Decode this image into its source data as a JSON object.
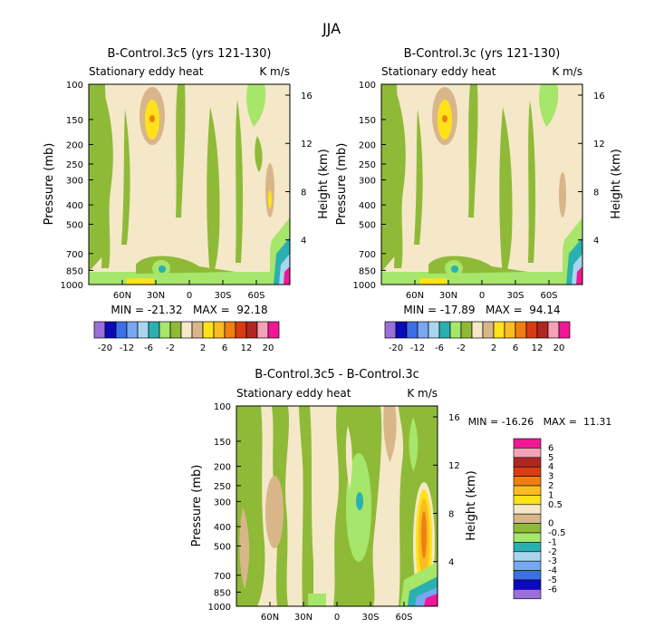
{
  "figure_title": "JJA",
  "colors": {
    "pos_legend": [
      "#9b6fd9",
      "#0a0ab8",
      "#3c6fe8",
      "#78a8f0",
      "#a9d6ee",
      "#2ab0b0",
      "#a6e66a",
      "#8fba38",
      "#f5e8c8",
      "#d8b68a",
      "#ffe21a",
      "#f9bd22",
      "#f07f12",
      "#d93c12",
      "#b02722",
      "#f4a2b8",
      "#f01896"
    ],
    "diff_legend": [
      "#f01896",
      "#f4a2b8",
      "#b02722",
      "#d93c12",
      "#f07f12",
      "#f9bd22",
      "#ffe21a",
      "#f5e8c8",
      "#d8b68a",
      "#8fba38",
      "#a6e66a",
      "#2ab0b0",
      "#a9d6ee",
      "#78a8f0",
      "#3c6fe8",
      "#0a0ab8",
      "#9b6fd9"
    ]
  },
  "chart_data": [
    {
      "type": "heatmap",
      "title": "B-Control.3c5 (yrs 121-130)",
      "subtitle_left": "Stationary eddy heat",
      "subtitle_right": "K m/s",
      "ylabel": "Pressure (mb)",
      "ylabel_right": "Height (km)",
      "x_ticks": [
        "60N",
        "30N",
        "0",
        "30S",
        "60S"
      ],
      "x_tick_values": [
        60,
        30,
        0,
        -30,
        -60
      ],
      "xlim": [
        90,
        -90
      ],
      "y_ticks": [
        100,
        150,
        200,
        250,
        300,
        400,
        500,
        700,
        850,
        1000
      ],
      "ylim": [
        100,
        1000
      ],
      "height_ticks": [
        16,
        12,
        8,
        4
      ],
      "stats": "MIN = -21.32   MAX =  92.18",
      "legend_labels": [
        "-20",
        "-12",
        "-6",
        "-2",
        "2",
        "6",
        "12",
        "20"
      ]
    },
    {
      "type": "heatmap",
      "title": "B-Control.3c (yrs 121-130)",
      "subtitle_left": "Stationary eddy heat",
      "subtitle_right": "K m/s",
      "ylabel": "Pressure (mb)",
      "ylabel_right": "Height (km)",
      "x_ticks": [
        "60N",
        "30N",
        "0",
        "30S",
        "60S"
      ],
      "x_tick_values": [
        60,
        30,
        0,
        -30,
        -60
      ],
      "xlim": [
        90,
        -90
      ],
      "y_ticks": [
        100,
        150,
        200,
        250,
        300,
        400,
        500,
        700,
        850,
        1000
      ],
      "ylim": [
        100,
        1000
      ],
      "height_ticks": [
        16,
        12,
        8,
        4
      ],
      "stats": "MIN = -17.89   MAX =  94.14",
      "legend_labels": [
        "-20",
        "-12",
        "-6",
        "-2",
        "2",
        "6",
        "12",
        "20"
      ]
    },
    {
      "type": "heatmap",
      "title": "B-Control.3c5 - B-Control.3c",
      "subtitle_left": "Stationary eddy heat",
      "subtitle_right": "K m/s",
      "ylabel": "Pressure (mb)",
      "ylabel_right": "Height (km)",
      "x_ticks": [
        "60N",
        "30N",
        "0",
        "30S",
        "60S"
      ],
      "x_tick_values": [
        60,
        30,
        0,
        -30,
        -60
      ],
      "xlim": [
        90,
        -90
      ],
      "y_ticks": [
        100,
        150,
        200,
        250,
        300,
        400,
        500,
        700,
        850,
        1000
      ],
      "ylim": [
        100,
        1000
      ],
      "height_ticks": [
        16,
        12,
        8,
        4
      ],
      "stats": "MIN = -16.26   MAX =  11.31",
      "legend_labels": [
        "6",
        "5",
        "4",
        "3",
        "2",
        "1",
        "0.5",
        "0",
        "-0.5",
        "-1",
        "-2",
        "-3",
        "-4",
        "-5",
        "-6"
      ]
    }
  ]
}
